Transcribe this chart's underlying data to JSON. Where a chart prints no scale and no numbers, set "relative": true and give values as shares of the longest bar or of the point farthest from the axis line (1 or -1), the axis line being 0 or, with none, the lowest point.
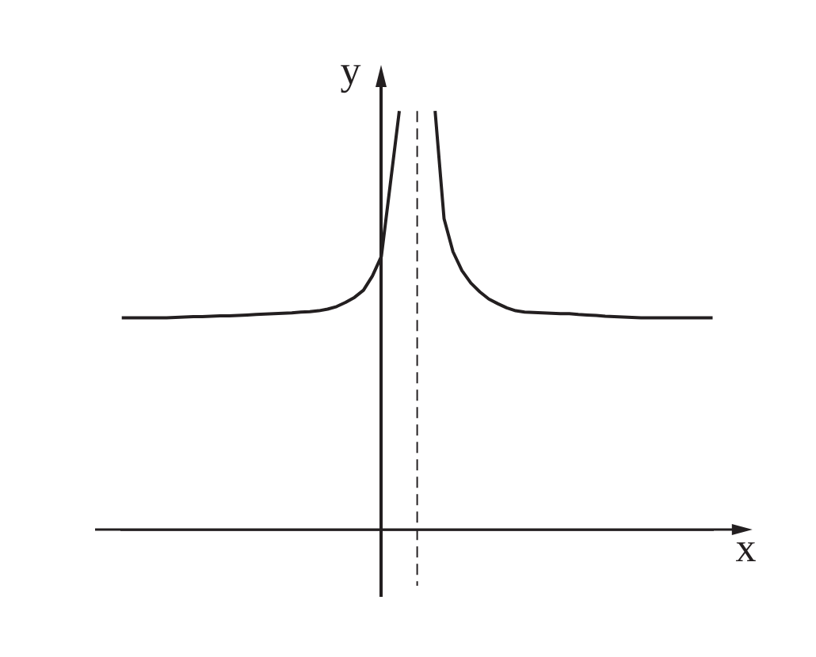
{
  "chart_data": {
    "type": "line",
    "xlabel": "x",
    "ylabel": "y",
    "relative": true,
    "grid": false,
    "legend": false,
    "marker": "none",
    "categories": [
      null,
      null,
      null,
      null,
      null,
      null,
      null,
      null,
      null,
      null,
      null,
      null,
      null,
      null,
      null,
      null,
      null,
      null,
      null,
      null,
      null,
      null,
      null,
      null,
      null,
      null,
      null,
      null,
      null,
      null,
      null,
      null,
      null,
      null,
      null,
      null,
      null,
      null,
      null,
      null,
      null,
      null,
      null,
      null,
      null,
      null,
      null,
      null,
      null,
      null,
      null,
      null,
      null,
      null,
      null,
      null,
      null,
      null,
      null,
      null,
      null,
      null,
      null,
      null,
      null,
      null,
      null
    ],
    "series": [
      {
        "color": "#231f20",
        "values": [
          0.506,
          0.506,
          0.506,
          0.506,
          0.506,
          0.506,
          0.507,
          0.508,
          0.509,
          0.509,
          0.51,
          0.511,
          0.511,
          0.512,
          0.513,
          0.514,
          0.515,
          0.516,
          0.517,
          0.518,
          0.52,
          0.521,
          0.523,
          0.527,
          0.533,
          0.543,
          0.555,
          0.572,
          0.606,
          0.653,
          0.826,
          1,
          null,
          null,
          null,
          1,
          0.743,
          0.664,
          0.619,
          0.589,
          0.568,
          0.551,
          0.54,
          0.53,
          0.523,
          0.52,
          0.519,
          0.518,
          0.517,
          0.516,
          0.516,
          0.514,
          0.513,
          0.512,
          0.51,
          0.509,
          0.508,
          0.507,
          0.506,
          0.506,
          0.506,
          0.506,
          0.506,
          0.506,
          0.506,
          0.506,
          0.506
        ]
      }
    ]
  }
}
